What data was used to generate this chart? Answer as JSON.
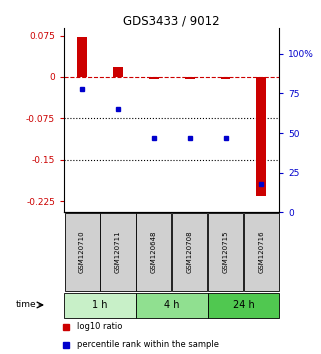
{
  "title": "GDS3433 / 9012",
  "samples": [
    "GSM120710",
    "GSM120711",
    "GSM120648",
    "GSM120708",
    "GSM120715",
    "GSM120716"
  ],
  "log10_ratio": [
    0.073,
    0.018,
    -0.003,
    -0.003,
    -0.003,
    -0.215
  ],
  "percentile_rank": [
    78,
    65,
    47,
    47,
    47,
    18
  ],
  "groups": [
    {
      "label": "1 h",
      "indices": [
        0,
        1
      ],
      "color": "#c8f0c8"
    },
    {
      "label": "4 h",
      "indices": [
        2,
        3
      ],
      "color": "#90e090"
    },
    {
      "label": "24 h",
      "indices": [
        4,
        5
      ],
      "color": "#50c850"
    }
  ],
  "left_yticks": [
    0.075,
    0,
    -0.075,
    -0.15,
    -0.225
  ],
  "right_yticks": [
    100,
    75,
    50,
    25,
    0
  ],
  "right_ytick_labels": [
    "100%",
    "75",
    "50",
    "25",
    "0"
  ],
  "ylim_left": [
    -0.245,
    0.088
  ],
  "ylim_right": [
    0,
    116
  ],
  "bar_width": 0.5,
  "red_color": "#cc0000",
  "blue_color": "#0000cc",
  "bg_color": "#ffffff",
  "sample_box_color": "#d0d0d0",
  "legend_items": [
    {
      "color": "#cc0000",
      "label": "log10 ratio"
    },
    {
      "color": "#0000cc",
      "label": "percentile rank within the sample"
    }
  ]
}
